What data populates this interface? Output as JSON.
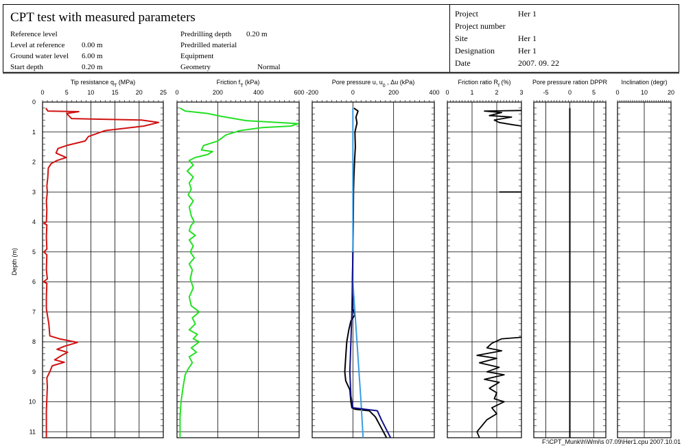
{
  "header": {
    "title": "CPT test with measured parameters",
    "left": [
      {
        "label": "Reference level",
        "value": ""
      },
      {
        "label": "Level at reference",
        "value": "0.00 m"
      },
      {
        "label": "Ground water level",
        "value": "6.00 m"
      },
      {
        "label": "Start depth",
        "value": "0.20 m"
      }
    ],
    "middle": [
      {
        "label": "Predrilling depth",
        "value": "0.20 m"
      },
      {
        "label": "Predrilled material",
        "value": ""
      },
      {
        "label": "Equipment",
        "value": ""
      },
      {
        "label": "Geometry",
        "value": "Normal"
      }
    ],
    "right": [
      {
        "label": "Project",
        "value": "Her 1"
      },
      {
        "label": "Project number",
        "value": ""
      },
      {
        "label": "Site",
        "value": "Her 1"
      },
      {
        "label": "Designation",
        "value": "Her 1"
      },
      {
        "label": "Date",
        "value": "2007. 09. 22"
      }
    ]
  },
  "footer": "F:\\CPT_Munk\\h\\Wmi\\s 07.09\\Her1.cpu 2007.10.01",
  "colors": {
    "tip": "#d01010",
    "friction": "#22e022",
    "pore_u": "#000000",
    "pore_u0": "#3a9be0",
    "pore_du": "#10108a",
    "ratio": "#000000",
    "dppr": "#000000"
  },
  "chart_data": {
    "type": "line",
    "ylabel": "Depth (m)",
    "ylim": [
      0,
      11.2
    ],
    "yticks": [
      "0",
      "1",
      "2",
      "3",
      "4",
      "5",
      "6",
      "7",
      "8",
      "9",
      "10",
      "11"
    ],
    "panels": [
      {
        "title": "Tip resistance q",
        "title_sub": "T",
        "title_unit": "(MPa)",
        "xlim": [
          0,
          25
        ],
        "xticks": [
          "0",
          "5",
          "10",
          "15",
          "20",
          "25"
        ],
        "series": [
          {
            "color": "#d01010",
            "points": [
              [
                0.7,
                0.2
              ],
              [
                1.1,
                0.3
              ],
              [
                7.5,
                0.32
              ],
              [
                5.0,
                0.38
              ],
              [
                6.0,
                0.55
              ],
              [
                20.5,
                0.6
              ],
              [
                24.0,
                0.68
              ],
              [
                21.0,
                0.8
              ],
              [
                13.0,
                0.95
              ],
              [
                9.5,
                1.15
              ],
              [
                8.8,
                1.3
              ],
              [
                5.0,
                1.45
              ],
              [
                3.2,
                1.55
              ],
              [
                2.8,
                1.7
              ],
              [
                4.9,
                1.85
              ],
              [
                3.0,
                1.95
              ],
              [
                1.8,
                2.05
              ],
              [
                1.2,
                2.2
              ],
              [
                1.1,
                2.5
              ],
              [
                0.9,
                2.8
              ],
              [
                1.0,
                3.0
              ],
              [
                0.8,
                3.3
              ],
              [
                0.9,
                3.6
              ],
              [
                0.8,
                4.0
              ],
              [
                0.3,
                4.05
              ],
              [
                0.9,
                4.1
              ],
              [
                0.8,
                4.5
              ],
              [
                0.9,
                4.9
              ],
              [
                0.3,
                5.0
              ],
              [
                0.9,
                5.1
              ],
              [
                0.8,
                5.6
              ],
              [
                1.0,
                5.9
              ],
              [
                0.2,
                6.0
              ],
              [
                0.9,
                6.05
              ],
              [
                0.8,
                6.5
              ],
              [
                0.8,
                6.9
              ],
              [
                1.0,
                7.1
              ],
              [
                1.3,
                7.4
              ],
              [
                1.5,
                7.8
              ],
              [
                3.5,
                7.9
              ],
              [
                7.2,
                8.02
              ],
              [
                4.5,
                8.15
              ],
              [
                3.0,
                8.25
              ],
              [
                5.2,
                8.35
              ],
              [
                4.0,
                8.45
              ],
              [
                2.5,
                8.6
              ],
              [
                4.5,
                8.68
              ],
              [
                2.0,
                8.8
              ],
              [
                1.5,
                9.0
              ],
              [
                0.9,
                9.2
              ],
              [
                1.0,
                9.5
              ],
              [
                0.9,
                9.9
              ],
              [
                0.8,
                10.3
              ],
              [
                0.8,
                10.8
              ],
              [
                0.8,
                11.2
              ]
            ]
          }
        ]
      },
      {
        "title": "Friction f",
        "title_sub": "T",
        "title_unit": "(kPa)",
        "xlim": [
          0,
          600
        ],
        "xticks": [
          "0",
          "200",
          "400",
          "600"
        ],
        "series": [
          {
            "color": "#22e022",
            "points": [
              [
                15,
                0.2
              ],
              [
                40,
                0.3
              ],
              [
                150,
                0.38
              ],
              [
                220,
                0.48
              ],
              [
                340,
                0.62
              ],
              [
                595,
                0.72
              ],
              [
                560,
                0.8
              ],
              [
                420,
                0.85
              ],
              [
                310,
                0.95
              ],
              [
                240,
                1.1
              ],
              [
                200,
                1.3
              ],
              [
                130,
                1.45
              ],
              [
                120,
                1.6
              ],
              [
                175,
                1.65
              ],
              [
                150,
                1.75
              ],
              [
                90,
                1.85
              ],
              [
                60,
                1.95
              ],
              [
                80,
                2.1
              ],
              [
                50,
                2.3
              ],
              [
                80,
                2.5
              ],
              [
                60,
                2.7
              ],
              [
                70,
                2.9
              ],
              [
                55,
                3.1
              ],
              [
                80,
                3.3
              ],
              [
                60,
                3.5
              ],
              [
                70,
                3.8
              ],
              [
                85,
                4.0
              ],
              [
                70,
                4.1
              ],
              [
                60,
                4.3
              ],
              [
                90,
                4.45
              ],
              [
                60,
                4.6
              ],
              [
                80,
                4.8
              ],
              [
                65,
                5.0
              ],
              [
                85,
                5.2
              ],
              [
                60,
                5.4
              ],
              [
                75,
                5.6
              ],
              [
                65,
                5.9
              ],
              [
                80,
                6.2
              ],
              [
                60,
                6.5
              ],
              [
                70,
                6.8
              ],
              [
                110,
                7.0
              ],
              [
                75,
                7.2
              ],
              [
                90,
                7.4
              ],
              [
                60,
                7.6
              ],
              [
                100,
                7.75
              ],
              [
                80,
                7.9
              ],
              [
                110,
                8.0
              ],
              [
                70,
                8.2
              ],
              [
                95,
                8.35
              ],
              [
                60,
                8.5
              ],
              [
                75,
                8.7
              ],
              [
                55,
                8.9
              ],
              [
                40,
                9.1
              ],
              [
                30,
                9.5
              ],
              [
                20,
                10.0
              ],
              [
                15,
                10.5
              ],
              [
                15,
                11.2
              ]
            ]
          }
        ]
      },
      {
        "title": "Pore pressure u, u",
        "title_sub": "0",
        "title_unit": ", Δu  (kPa)",
        "xlim": [
          -200,
          400
        ],
        "xticks": [
          "-200",
          "0",
          "200",
          "400"
        ],
        "series": [
          {
            "color": "#000000",
            "points": [
              [
                5,
                0.2
              ],
              [
                25,
                0.3
              ],
              [
                15,
                0.5
              ],
              [
                20,
                0.7
              ],
              [
                10,
                1.0
              ],
              [
                12,
                1.5
              ],
              [
                8,
                2.0
              ],
              [
                5,
                2.5
              ],
              [
                3,
                3.0
              ],
              [
                2,
                4.0
              ],
              [
                0,
                5.0
              ],
              [
                -2,
                6.0
              ],
              [
                0,
                6.9
              ],
              [
                10,
                7.1
              ],
              [
                -10,
                7.3
              ],
              [
                -20,
                7.6
              ],
              [
                -30,
                8.0
              ],
              [
                -35,
                8.5
              ],
              [
                -40,
                9.0
              ],
              [
                -35,
                9.3
              ],
              [
                -15,
                9.6
              ],
              [
                -10,
                10.0
              ],
              [
                -5,
                10.2
              ],
              [
                10,
                10.25
              ],
              [
                80,
                10.3
              ],
              [
                110,
                10.5
              ],
              [
                150,
                11.0
              ],
              [
                165,
                11.2
              ]
            ]
          },
          {
            "color": "#3a9be0",
            "points": [
              [
                0,
                0.2
              ],
              [
                0,
                6.0
              ],
              [
                10,
                7.0
              ],
              [
                20,
                8.0
              ],
              [
                30,
                9.0
              ],
              [
                40,
                10.0
              ],
              [
                50,
                11.2
              ]
            ]
          },
          {
            "color": "#10108a",
            "points": [
              [
                0,
                5.0
              ],
              [
                -5,
                7.0
              ],
              [
                -10,
                8.0
              ],
              [
                -15,
                9.0
              ],
              [
                -10,
                9.8
              ],
              [
                0,
                10.2
              ],
              [
                120,
                10.3
              ],
              [
                140,
                10.6
              ],
              [
                170,
                11.0
              ],
              [
                185,
                11.2
              ]
            ]
          }
        ]
      },
      {
        "title": "Friction ratio R",
        "title_sub": "f",
        "title_unit": "(%)",
        "xlim": [
          0,
          3
        ],
        "xticks": [
          "0",
          "1",
          "2",
          "3"
        ],
        "segments": [
          [
            [
              3.0,
              0.28
            ],
            [
              1.5,
              0.3
            ],
            [
              2.2,
              0.35
            ],
            [
              1.7,
              0.45
            ],
            [
              2.6,
              0.5
            ],
            [
              1.9,
              0.6
            ],
            [
              2.1,
              0.68
            ],
            [
              2.6,
              0.75
            ],
            [
              3.0,
              0.8
            ]
          ],
          [
            [
              2.1,
              3.0
            ],
            [
              3.0,
              3.0
            ]
          ],
          [
            [
              3.0,
              7.85
            ],
            [
              2.2,
              7.9
            ],
            [
              1.8,
              8.05
            ],
            [
              1.6,
              8.2
            ],
            [
              2.2,
              8.3
            ],
            [
              1.2,
              8.45
            ],
            [
              2.0,
              8.55
            ],
            [
              1.3,
              8.7
            ],
            [
              2.1,
              8.85
            ],
            [
              1.6,
              9.0
            ],
            [
              2.3,
              9.1
            ],
            [
              1.5,
              9.25
            ],
            [
              2.1,
              9.35
            ],
            [
              1.7,
              9.55
            ],
            [
              2.0,
              9.7
            ],
            [
              1.9,
              9.9
            ],
            [
              2.3,
              10.0
            ],
            [
              1.8,
              10.2
            ],
            [
              2.0,
              10.4
            ],
            [
              1.6,
              10.6
            ],
            [
              1.4,
              10.8
            ],
            [
              1.2,
              11.0
            ],
            [
              1.3,
              11.2
            ]
          ]
        ]
      },
      {
        "title": "Pore pressure ration DPPR",
        "title_sub": "",
        "title_unit": "",
        "xlim": [
          -7.5,
          7.5
        ],
        "xticks": [
          "-5",
          "0",
          "5"
        ],
        "series": [
          {
            "color": "#000000",
            "points": [
              [
                0,
                0.2
              ],
              [
                0,
                11.2
              ]
            ]
          }
        ]
      },
      {
        "title": "Inclination (degr)",
        "title_sub": "",
        "title_unit": "",
        "xlim": [
          0,
          20
        ],
        "xticks": [
          "0",
          "10",
          "20"
        ],
        "series": []
      }
    ]
  }
}
